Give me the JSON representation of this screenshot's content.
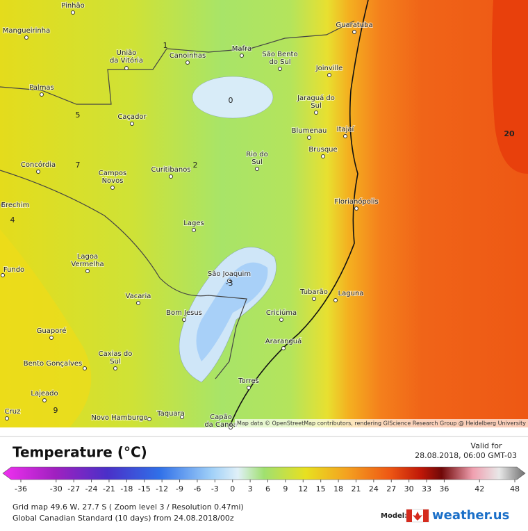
{
  "map": {
    "cities": [
      [
        "Pinhão"
      ],
      [
        "Mangueirinha"
      ],
      [
        "União",
        "da Vitória"
      ],
      [
        "Canoinhas"
      ],
      [
        "Mafra"
      ],
      [
        "São Bento",
        "do Sul"
      ],
      [
        "Guaratuba"
      ],
      [
        "Joinville"
      ],
      [
        "Palmas"
      ],
      [
        "Jaraguá do",
        "Sul"
      ],
      [
        "Caçador"
      ],
      [
        "Blumenau"
      ],
      [
        "Itajaí"
      ],
      [
        "Brusque"
      ],
      [
        "Rio do",
        "Sul"
      ],
      [
        "Concórdia"
      ],
      [
        "Campos",
        "Novos"
      ],
      [
        "Curitibanos"
      ],
      [
        "Florianópolis"
      ],
      [
        "Erechim"
      ],
      [
        "Lages"
      ],
      [
        "Lagoa",
        "Vermelha"
      ],
      [
        "Fundo"
      ],
      [
        "São Joaquim"
      ],
      [
        "Tubarão"
      ],
      [
        "Laguna"
      ],
      [
        "Vacaria"
      ],
      [
        "Bom Jesus"
      ],
      [
        "Criciúma"
      ],
      [
        "Guaporé"
      ],
      [
        "Araranguá"
      ],
      [
        "Caxias do",
        "Sul"
      ],
      [
        "Bento Gonçalves"
      ],
      [
        "Torres"
      ],
      [
        "Lajeado"
      ],
      [
        "Cruz"
      ],
      [
        "Novo Hamburgo"
      ],
      [
        "Taquara"
      ],
      [
        "Capão",
        "da Canoa"
      ]
    ],
    "contour_labels": [
      1,
      0,
      5,
      7,
      2,
      4,
      -3,
      9,
      20
    ],
    "attribution": "Map data © OpenStreetMap contributors, rendering GIScience Research Group @ Heidelberg University"
  },
  "legend": {
    "title": "Temperature (°C)",
    "valid_for": "Valid for",
    "valid_time": "28.08.2018, 06:00 GMT-03",
    "scale_ticks": [
      -36,
      -30,
      -27,
      -24,
      -21,
      -18,
      -15,
      -12,
      -9,
      -6,
      -3,
      0,
      3,
      6,
      9,
      12,
      15,
      18,
      21,
      24,
      27,
      30,
      33,
      36,
      42,
      48
    ],
    "grid_info": "Grid map 49.6 W, 27.7 S ( Zoom level 3 / Resolution 0.47mi)",
    "model_info": "Global Canadian Standard (10 days) from 24.08.2018/00z",
    "model_label": "Model:",
    "brand": "weather.us"
  }
}
